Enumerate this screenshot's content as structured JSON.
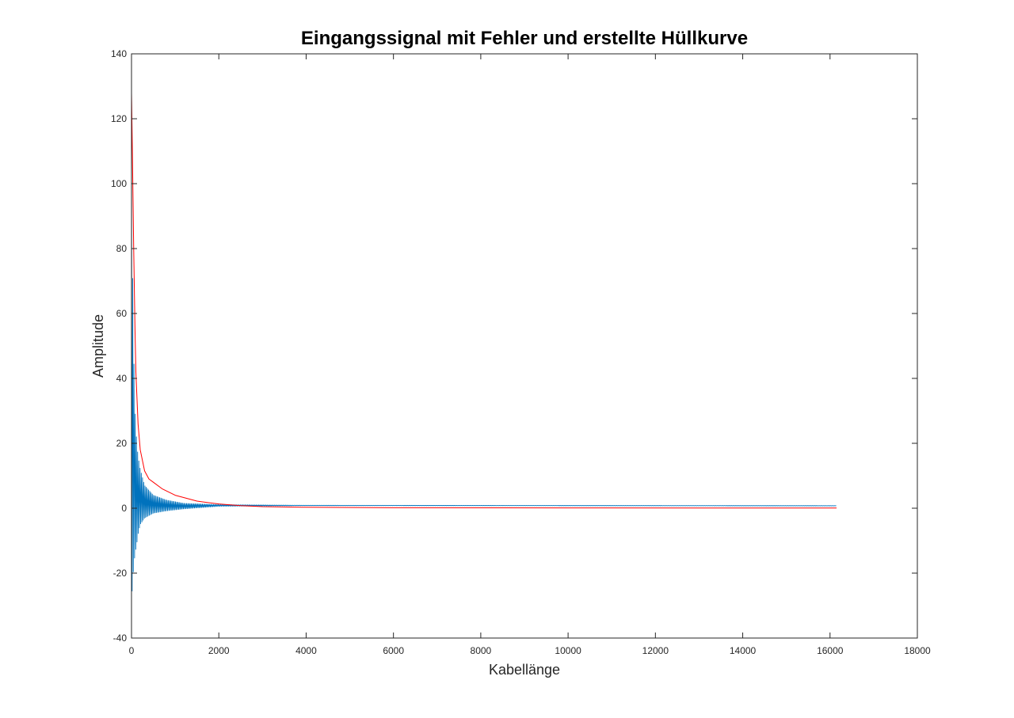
{
  "chart_data": {
    "type": "line",
    "title": "Eingangssignal mit Fehler und erstellte Hüllkurve",
    "xlabel": "Kabellänge",
    "ylabel": "Amplitude",
    "xlim": [
      0,
      18000
    ],
    "ylim": [
      -40,
      140
    ],
    "xticks": [
      0,
      2000,
      4000,
      6000,
      8000,
      10000,
      12000,
      14000,
      16000,
      18000
    ],
    "yticks": [
      -40,
      -20,
      0,
      20,
      40,
      60,
      80,
      100,
      120,
      140
    ],
    "xtick_labels": [
      "0",
      "2000",
      "4000",
      "6000",
      "8000",
      "10000",
      "12000",
      "14000",
      "16000",
      "18000"
    ],
    "ytick_labels": [
      "-40",
      "-20",
      "0",
      "20",
      "40",
      "60",
      "80",
      "100",
      "120",
      "140"
    ],
    "grid": false,
    "box": true,
    "series": [
      {
        "style": "oscillating",
        "color": "#0072BD",
        "x_end": 16150,
        "baseline": [
          [
            0,
            0
          ],
          [
            300,
            0.2
          ],
          [
            1500,
            0.8
          ],
          [
            2500,
            1.1
          ],
          [
            4000,
            1.0
          ],
          [
            16150,
            0.8
          ]
        ],
        "upper_envelope": [
          [
            0,
            110
          ],
          [
            10,
            98
          ],
          [
            20,
            82
          ],
          [
            30,
            68
          ],
          [
            50,
            48
          ],
          [
            80,
            30
          ],
          [
            120,
            20
          ],
          [
            150,
            16
          ],
          [
            200,
            12
          ],
          [
            300,
            7
          ],
          [
            500,
            4
          ],
          [
            800,
            2.5
          ],
          [
            1200,
            1.5
          ],
          [
            2000,
            1.1
          ],
          [
            4000,
            0.9
          ],
          [
            16150,
            0.8
          ]
        ],
        "lower_envelope": [
          [
            0,
            -29
          ],
          [
            20,
            -24
          ],
          [
            50,
            -18
          ],
          [
            80,
            -14
          ],
          [
            120,
            -11
          ],
          [
            150,
            -8
          ],
          [
            200,
            -5
          ],
          [
            300,
            -3
          ],
          [
            500,
            -1.5
          ],
          [
            800,
            -0.8
          ],
          [
            1200,
            -0.2
          ],
          [
            2000,
            0.6
          ],
          [
            4000,
            0.8
          ],
          [
            16150,
            0.7
          ]
        ],
        "cycle_spacing": 14
      },
      {
        "style": "smooth",
        "color": "#FF0000",
        "points": [
          [
            0,
            128
          ],
          [
            20,
            110
          ],
          [
            50,
            80
          ],
          [
            80,
            55
          ],
          [
            100,
            42
          ],
          [
            150,
            26
          ],
          [
            200,
            18
          ],
          [
            300,
            11.5
          ],
          [
            400,
            9
          ],
          [
            500,
            8
          ],
          [
            700,
            6
          ],
          [
            1000,
            4
          ],
          [
            1500,
            2.2
          ],
          [
            2000,
            1.3
          ],
          [
            2500,
            0.8
          ],
          [
            3000,
            0.5
          ],
          [
            4000,
            0.3
          ],
          [
            6000,
            0.15
          ],
          [
            10000,
            0.1
          ],
          [
            16150,
            0.05
          ]
        ]
      }
    ]
  }
}
